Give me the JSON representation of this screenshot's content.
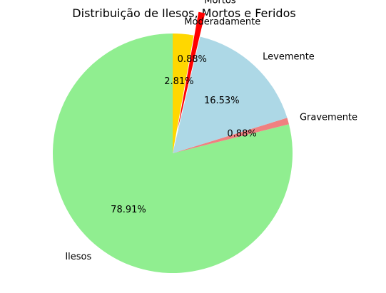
{
  "chart_data": {
    "type": "pie",
    "title": "Distribuição de Ilesos, Mortos e Feridos",
    "slices": [
      {
        "label": "Ilesos",
        "value": 78.91,
        "pct_label": "78.91%",
        "color": "#90ee90",
        "exploded": false
      },
      {
        "label": "Gravemente",
        "value": 0.88,
        "pct_label": "0.88%",
        "color": "#f08080",
        "exploded": false
      },
      {
        "label": "Levemente",
        "value": 16.53,
        "pct_label": "16.53%",
        "color": "#add8e6",
        "exploded": false
      },
      {
        "label": "Mortos",
        "value": 0.88,
        "pct_label": "0.88%",
        "color": "#ff0000",
        "exploded": true
      },
      {
        "label": "Moderadamente",
        "value": 2.81,
        "pct_label": "2.81%",
        "color": "#ffd700",
        "exploded": false
      }
    ]
  }
}
